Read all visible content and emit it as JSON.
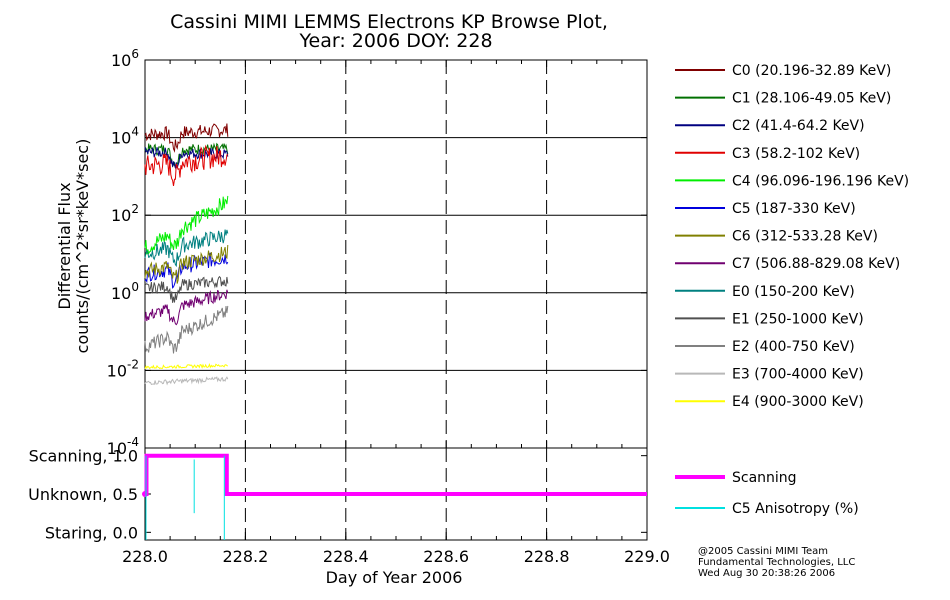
{
  "title_line1": "Cassini MIMI LEMMS Electrons KP Browse Plot,",
  "title_line2": "Year: 2006 DOY: 228",
  "footer": {
    "line1": "@2005 Cassini MIMI Team",
    "line2": "Fundamental Technologies, LLC",
    "line3": "Wed Aug 30 20:38:26 2006"
  },
  "chart_data": [
    {
      "type": "line",
      "panel": "flux",
      "ylabel_line1": "Differential Flux",
      "ylabel_line2": "counts/(cm^2*sr*keV*sec)",
      "yscale": "log",
      "ylim": [
        0.0001,
        1000000
      ],
      "y_ticks": [
        {
          "base": "10",
          "exp": "6",
          "value": 1000000
        },
        {
          "base": "10",
          "exp": "4",
          "value": 10000
        },
        {
          "base": "10",
          "exp": "2",
          "value": 100
        },
        {
          "base": "10",
          "exp": "0",
          "value": 1
        },
        {
          "base": "10",
          "exp": "-2",
          "value": 0.01
        },
        {
          "base": "10",
          "exp": "-4",
          "value": 0.0001
        }
      ],
      "xlim": [
        228.0,
        229.0
      ],
      "grid_x_dashed": [
        228.2,
        228.4,
        228.6,
        228.8
      ],
      "grid_y_solid": [
        10000,
        100,
        1,
        0.01
      ],
      "data_x_range": [
        228.0,
        228.165
      ],
      "series": [
        {
          "name": "C0 (20.196-32.89 KeV)",
          "color": "#800000",
          "level": 12000,
          "noise": 0.18,
          "rise": 0.12
        },
        {
          "name": "C1 (28.106-49.05 KeV)",
          "color": "#007000",
          "level": 5000,
          "noise": 0.15,
          "rise": 0.0
        },
        {
          "name": "C2 (41.4-64.2 KeV)",
          "color": "#000080",
          "level": 4200,
          "noise": 0.14,
          "rise": -0.05
        },
        {
          "name": "C3 (58.2-102 KeV)",
          "color": "#e00000",
          "level": 1800,
          "noise": 0.3,
          "rise": 0.3
        },
        {
          "name": "C4 (96.096-196.196 KeV)",
          "color": "#00ee00",
          "level": 14,
          "noise": 0.22,
          "rise": 1.2
        },
        {
          "name": "C5 (187-330 KeV)",
          "color": "#0000dd",
          "level": 3,
          "noise": 0.2,
          "rise": 0.45
        },
        {
          "name": "C6 (312-533.28 KeV)",
          "color": "#808000",
          "level": 3.5,
          "noise": 0.2,
          "rise": 0.5
        },
        {
          "name": "C7 (506.88-829.08 KeV)",
          "color": "#700070",
          "level": 0.25,
          "noise": 0.16,
          "rise": 0.6
        },
        {
          "name": "E0 (150-200 KeV)",
          "color": "#008080",
          "level": 10,
          "noise": 0.2,
          "rise": 0.5
        },
        {
          "name": "E1 (250-1000 KeV)",
          "color": "#505050",
          "level": 1.3,
          "noise": 0.15,
          "rise": 0.2
        },
        {
          "name": "E2 (400-750 KeV)",
          "color": "#808080",
          "level": 0.04,
          "noise": 0.18,
          "rise": 0.9
        },
        {
          "name": "E3 (700-4000 KeV)",
          "color": "#b8b8b8",
          "level": 0.0048,
          "noise": 0.06,
          "rise": 0.1
        },
        {
          "name": "E4 (900-3000 KeV)",
          "color": "#ffff00",
          "level": 0.012,
          "noise": 0.04,
          "rise": 0.05
        }
      ]
    },
    {
      "type": "line",
      "panel": "mode",
      "xlabel": "Day of Year 2006",
      "xlim": [
        228.0,
        229.0
      ],
      "ylim": [
        -0.1,
        1.1
      ],
      "x_ticks": [
        "228.0",
        "228.2",
        "228.4",
        "228.6",
        "228.8",
        "229.0"
      ],
      "y_ticks": [
        {
          "label": "Scanning, 1.0",
          "value": 1.0
        },
        {
          "label": "Unknown, 0.5",
          "value": 0.5
        },
        {
          "label": "Staring, 0.0",
          "value": 0.0
        }
      ],
      "grid_x_dashed": [
        228.2,
        228.4,
        228.6,
        228.8
      ],
      "series": [
        {
          "name": "Scanning",
          "color": "#ff00ff",
          "x": [
            228.0,
            228.003,
            228.003,
            228.163,
            228.163,
            229.0
          ],
          "y": [
            0.5,
            0.5,
            1.0,
            1.0,
            0.5,
            0.5
          ]
        },
        {
          "name": "C5 Anisotropy (%)",
          "color": "#00e0e0",
          "spikes": [
            {
              "x": 228.002,
              "y0": 1.0,
              "y1": -0.1
            },
            {
              "x": 228.098,
              "y0": 0.95,
              "y1": 0.25
            },
            {
              "x": 228.158,
              "y0": 1.0,
              "y1": -0.1
            }
          ]
        }
      ]
    }
  ]
}
